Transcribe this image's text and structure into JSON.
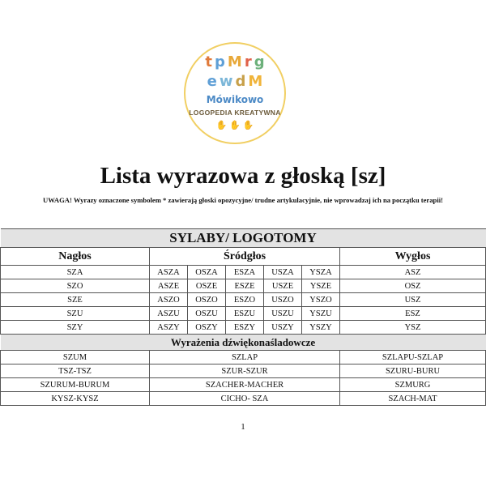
{
  "logo": {
    "brand": "Mówikowo",
    "tagline": "LOGOPEDIA KREATYWNA",
    "letters": [
      "t",
      "p",
      "M",
      "r",
      "g",
      "e",
      "w",
      "d",
      "M"
    ]
  },
  "title": "Lista wyrazowa z głoską [sz]",
  "warning": "UWAGA! Wyrazy oznaczone symbolem * zawierają głoski opozycyjne/ trudne artykulacyjnie, nie wprowadzaj ich na początku terapii!",
  "section1": {
    "title": "SYLABY/ LOGOTOMY",
    "headers": [
      "Nagłos",
      "Śródgłos",
      "Wygłos"
    ],
    "rows": [
      {
        "naglos": "SZA",
        "srodglos": [
          "ASZA",
          "OSZA",
          "ESZA",
          "USZA",
          "YSZA"
        ],
        "wyglos": "ASZ"
      },
      {
        "naglos": "SZO",
        "srodglos": [
          "ASZE",
          "OSZE",
          "ESZE",
          "USZE",
          "YSZE"
        ],
        "wyglos": "OSZ"
      },
      {
        "naglos": "SZE",
        "srodglos": [
          "ASZO",
          "OSZO",
          "ESZO",
          "USZO",
          "YSZO"
        ],
        "wyglos": "USZ"
      },
      {
        "naglos": "SZU",
        "srodglos": [
          "ASZU",
          "OSZU",
          "ESZU",
          "USZU",
          "YSZU"
        ],
        "wyglos": "ESZ"
      },
      {
        "naglos": "SZY",
        "srodglos": [
          "ASZY",
          "OSZY",
          "ESZY",
          "USZY",
          "YSZY"
        ],
        "wyglos": "YSZ"
      }
    ]
  },
  "section2": {
    "title": "Wyrażenia dźwiękonaśladowcze",
    "rows": [
      [
        "SZUM",
        "SZLAP",
        "SZLAPU-SZLAP"
      ],
      [
        "TSZ-TSZ",
        "SZUR-SZUR",
        "SZURU-BURU"
      ],
      [
        "SZURUM-BURUM",
        "SZACHER-MACHER",
        "SZMURG"
      ],
      [
        "KYSZ-KYSZ",
        "CICHO- SZA",
        "SZACH-MAT"
      ]
    ]
  },
  "page_number": "1"
}
